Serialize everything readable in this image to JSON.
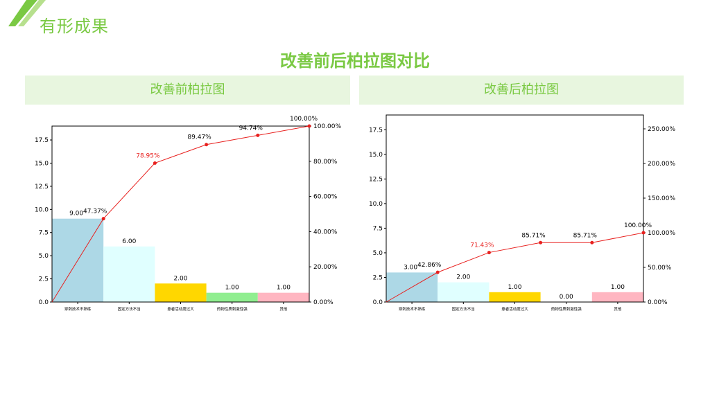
{
  "header": {
    "page_title": "有形成果",
    "main_title": "改善前后柏拉图对比"
  },
  "panels": [
    {
      "title": "改善前柏拉图"
    },
    {
      "title": "改善后柏拉图"
    }
  ],
  "colors": {
    "accent": "#7ac943",
    "panel_bg": "#e8f6df",
    "line": "#e8201e",
    "bars": [
      "#add8e6",
      "#e0ffff",
      "#ffd700",
      "#90ee90",
      "#ffb6c1"
    ]
  },
  "chart_data": [
    {
      "type": "bar",
      "categories": [
        "穿刺技术不熟练",
        "固定方法不当",
        "患者活动度过大",
        "药物性质刺激性强",
        "其他"
      ],
      "values": [
        9.0,
        6.0,
        2.0,
        1.0,
        1.0
      ],
      "value_labels": [
        "9.00",
        "6.00",
        "2.00",
        "1.00",
        "1.00"
      ],
      "cumulative_percent": [
        47.37,
        78.95,
        89.47,
        94.74,
        100.0
      ],
      "cumulative_labels": [
        "47.37%",
        "78.95%",
        "89.47%",
        "94.74%",
        "100.00%"
      ],
      "highlight_index": 1,
      "ylim": [
        0,
        19
      ],
      "y_ticks": [
        "0.0",
        "2.5",
        "5.0",
        "7.5",
        "10.0",
        "12.5",
        "15.0",
        "17.5"
      ],
      "y2lim": [
        0,
        100
      ],
      "y2_ticks": [
        "0.00%",
        "20.00%",
        "40.00%",
        "60.00%",
        "80.00%",
        "100.00%"
      ],
      "title": "",
      "xlabel": "",
      "ylabel": "",
      "grid": false,
      "legend": "none"
    },
    {
      "type": "bar",
      "categories": [
        "穿刺技术不熟练",
        "固定方法不当",
        "患者活动度过大",
        "药物性质刺激性强",
        "其他"
      ],
      "values": [
        3.0,
        2.0,
        1.0,
        0.0,
        1.0
      ],
      "value_labels": [
        "3.00",
        "2.00",
        "1.00",
        "0.00",
        "1.00"
      ],
      "cumulative_percent": [
        42.86,
        71.43,
        85.71,
        85.71,
        100.0
      ],
      "cumulative_labels": [
        "42.86%",
        "71.43%",
        "85.71%",
        "85.71%",
        "100.00%"
      ],
      "highlight_index": 1,
      "ylim": [
        0,
        19
      ],
      "y_ticks": [
        "0.0",
        "2.5",
        "5.0",
        "7.5",
        "10.0",
        "12.5",
        "15.0",
        "17.5"
      ],
      "y2lim": [
        0,
        270
      ],
      "y2_ticks": [
        "0.00%",
        "50.00%",
        "100.00%",
        "150.00%",
        "200.00%",
        "250.00%"
      ],
      "title": "",
      "xlabel": "",
      "ylabel": "",
      "grid": false,
      "legend": "none"
    }
  ]
}
